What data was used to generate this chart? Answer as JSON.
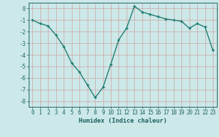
{
  "x": [
    0,
    1,
    2,
    3,
    4,
    5,
    6,
    7,
    8,
    9,
    10,
    11,
    12,
    13,
    14,
    15,
    16,
    17,
    18,
    19,
    20,
    21,
    22,
    23
  ],
  "y": [
    -1.0,
    -1.3,
    -1.5,
    -2.3,
    -3.3,
    -4.7,
    -5.5,
    -6.6,
    -7.7,
    -6.8,
    -4.8,
    -2.7,
    -1.7,
    0.2,
    -0.3,
    -0.5,
    -0.7,
    -0.9,
    -1.0,
    -1.1,
    -1.7,
    -1.3,
    -1.6,
    -3.6
  ],
  "line_color": "#1a7a6e",
  "marker": "+",
  "markersize": 3.5,
  "linewidth": 1.0,
  "xlabel": "Humidex (Indice chaleur)",
  "xlabel_fontsize": 6.5,
  "xlim": [
    -0.5,
    23.5
  ],
  "ylim": [
    -8.5,
    0.5
  ],
  "yticks": [
    0,
    -1,
    -2,
    -3,
    -4,
    -5,
    -6,
    -7,
    -8
  ],
  "xticks": [
    0,
    1,
    2,
    3,
    4,
    5,
    6,
    7,
    8,
    9,
    10,
    11,
    12,
    13,
    14,
    15,
    16,
    17,
    18,
    19,
    20,
    21,
    22,
    23
  ],
  "background_color": "#cce8e8",
  "grid_color_major": "#d0a0a0",
  "grid_color_minor": "#d0a0a0",
  "tick_color": "#1a5f5f",
  "tick_fontsize": 5.5,
  "spine_color": "#1a5f5f",
  "markeredgewidth": 1.0
}
